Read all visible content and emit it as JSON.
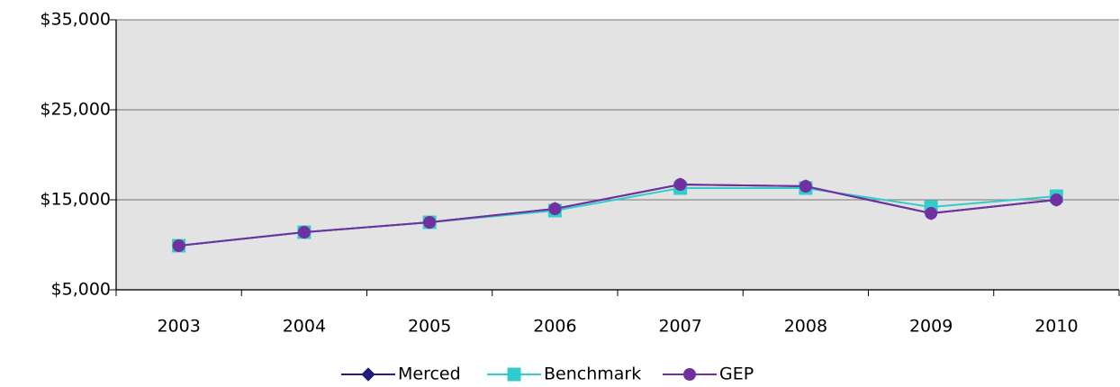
{
  "chart_data": {
    "type": "line",
    "categories": [
      "2003",
      "2004",
      "2005",
      "2006",
      "2007",
      "2008",
      "2009",
      "2010"
    ],
    "series": [
      {
        "name": "Merced",
        "color": "#1f1f7a",
        "marker": "diamond",
        "values": [
          9900,
          11400,
          12500,
          14000,
          16700,
          16500,
          13500,
          15000
        ]
      },
      {
        "name": "Benchmark",
        "color": "#33cccc",
        "marker": "square",
        "values": [
          9900,
          11400,
          12500,
          13800,
          16300,
          16300,
          14200,
          15400
        ]
      },
      {
        "name": "GEP",
        "color": "#7030a0",
        "marker": "circle",
        "values": [
          9900,
          11400,
          12500,
          14000,
          16700,
          16500,
          13500,
          15000
        ]
      }
    ],
    "ylim": [
      5000,
      35000
    ],
    "yticks": [
      {
        "value": 5000,
        "label": "$5,000"
      },
      {
        "value": 15000,
        "label": "$15,000"
      },
      {
        "value": 25000,
        "label": "$25,000"
      },
      {
        "value": 35000,
        "label": "$35,000"
      }
    ],
    "grid": true,
    "legend": "bottom"
  }
}
